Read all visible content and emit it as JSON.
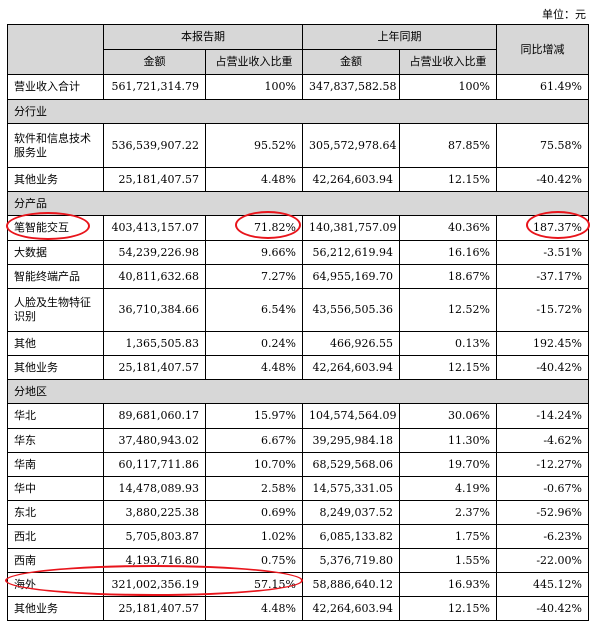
{
  "unit_label": "单位：元",
  "header": {
    "current_period": "本报告期",
    "prior_period": "上年同期",
    "yoy_change": "同比增减",
    "amount": "金额",
    "revenue_share": "占营业收入比重"
  },
  "total_row": {
    "label": "营业收入合计",
    "amount": "561,721,314.79",
    "share": "100%",
    "prior_amount": "347,837,582.58",
    "prior_share": "100%",
    "change": "61.49%"
  },
  "sections": {
    "industry": "分行业",
    "product": "分产品",
    "region": "分地区"
  },
  "industry_rows": [
    {
      "label": "软件和信息技术服务业",
      "amount": "536,539,907.22",
      "share": "95.52%",
      "prior_amount": "305,572,978.64",
      "prior_share": "87.85%",
      "change": "75.58%"
    },
    {
      "label": "其他业务",
      "amount": "25,181,407.57",
      "share": "4.48%",
      "prior_amount": "42,264,603.94",
      "prior_share": "12.15%",
      "change": "-40.42%"
    }
  ],
  "product_rows": [
    {
      "label": "笔智能交互",
      "amount": "403,413,157.07",
      "share": "71.82%",
      "prior_amount": "140,381,757.09",
      "prior_share": "40.36%",
      "change": "187.37%"
    },
    {
      "label": "大数据",
      "amount": "54,239,226.98",
      "share": "9.66%",
      "prior_amount": "56,212,619.94",
      "prior_share": "16.16%",
      "change": "-3.51%"
    },
    {
      "label": "智能终端产品",
      "amount": "40,811,632.68",
      "share": "7.27%",
      "prior_amount": "64,955,169.70",
      "prior_share": "18.67%",
      "change": "-37.17%"
    },
    {
      "label": "人脸及生物特征识别",
      "amount": "36,710,384.66",
      "share": "6.54%",
      "prior_amount": "43,556,505.36",
      "prior_share": "12.52%",
      "change": "-15.72%"
    },
    {
      "label": "其他",
      "amount": "1,365,505.83",
      "share": "0.24%",
      "prior_amount": "466,926.55",
      "prior_share": "0.13%",
      "change": "192.45%"
    },
    {
      "label": "其他业务",
      "amount": "25,181,407.57",
      "share": "4.48%",
      "prior_amount": "42,264,603.94",
      "prior_share": "12.15%",
      "change": "-40.42%"
    }
  ],
  "region_rows": [
    {
      "label": "华北",
      "amount": "89,681,060.17",
      "share": "15.97%",
      "prior_amount": "104,574,564.09",
      "prior_share": "30.06%",
      "change": "-14.24%"
    },
    {
      "label": "华东",
      "amount": "37,480,943.02",
      "share": "6.67%",
      "prior_amount": "39,295,984.18",
      "prior_share": "11.30%",
      "change": "-4.62%"
    },
    {
      "label": "华南",
      "amount": "60,117,711.86",
      "share": "10.70%",
      "prior_amount": "68,529,568.06",
      "prior_share": "19.70%",
      "change": "-12.27%"
    },
    {
      "label": "华中",
      "amount": "14,478,089.93",
      "share": "2.58%",
      "prior_amount": "14,575,331.05",
      "prior_share": "4.19%",
      "change": "-0.67%"
    },
    {
      "label": "东北",
      "amount": "3,880,225.38",
      "share": "0.69%",
      "prior_amount": "8,249,037.52",
      "prior_share": "2.37%",
      "change": "-52.96%"
    },
    {
      "label": "西北",
      "amount": "5,705,803.87",
      "share": "1.02%",
      "prior_amount": "6,085,133.82",
      "prior_share": "1.75%",
      "change": "-6.23%"
    },
    {
      "label": "西南",
      "amount": "4,193,716.80",
      "share": "0.75%",
      "prior_amount": "5,376,719.80",
      "prior_share": "1.55%",
      "change": "-22.00%"
    },
    {
      "label": "海外",
      "amount": "321,002,356.19",
      "share": "57.15%",
      "prior_amount": "58,886,640.12",
      "prior_share": "16.93%",
      "change": "445.12%"
    },
    {
      "label": "其他业务",
      "amount": "25,181,407.57",
      "share": "4.48%",
      "prior_amount": "42,264,603.94",
      "prior_share": "12.15%",
      "change": "-40.42%"
    }
  ],
  "colors": {
    "header_bg": "#d7d7d7",
    "highlight_circle": "#e8141b"
  }
}
